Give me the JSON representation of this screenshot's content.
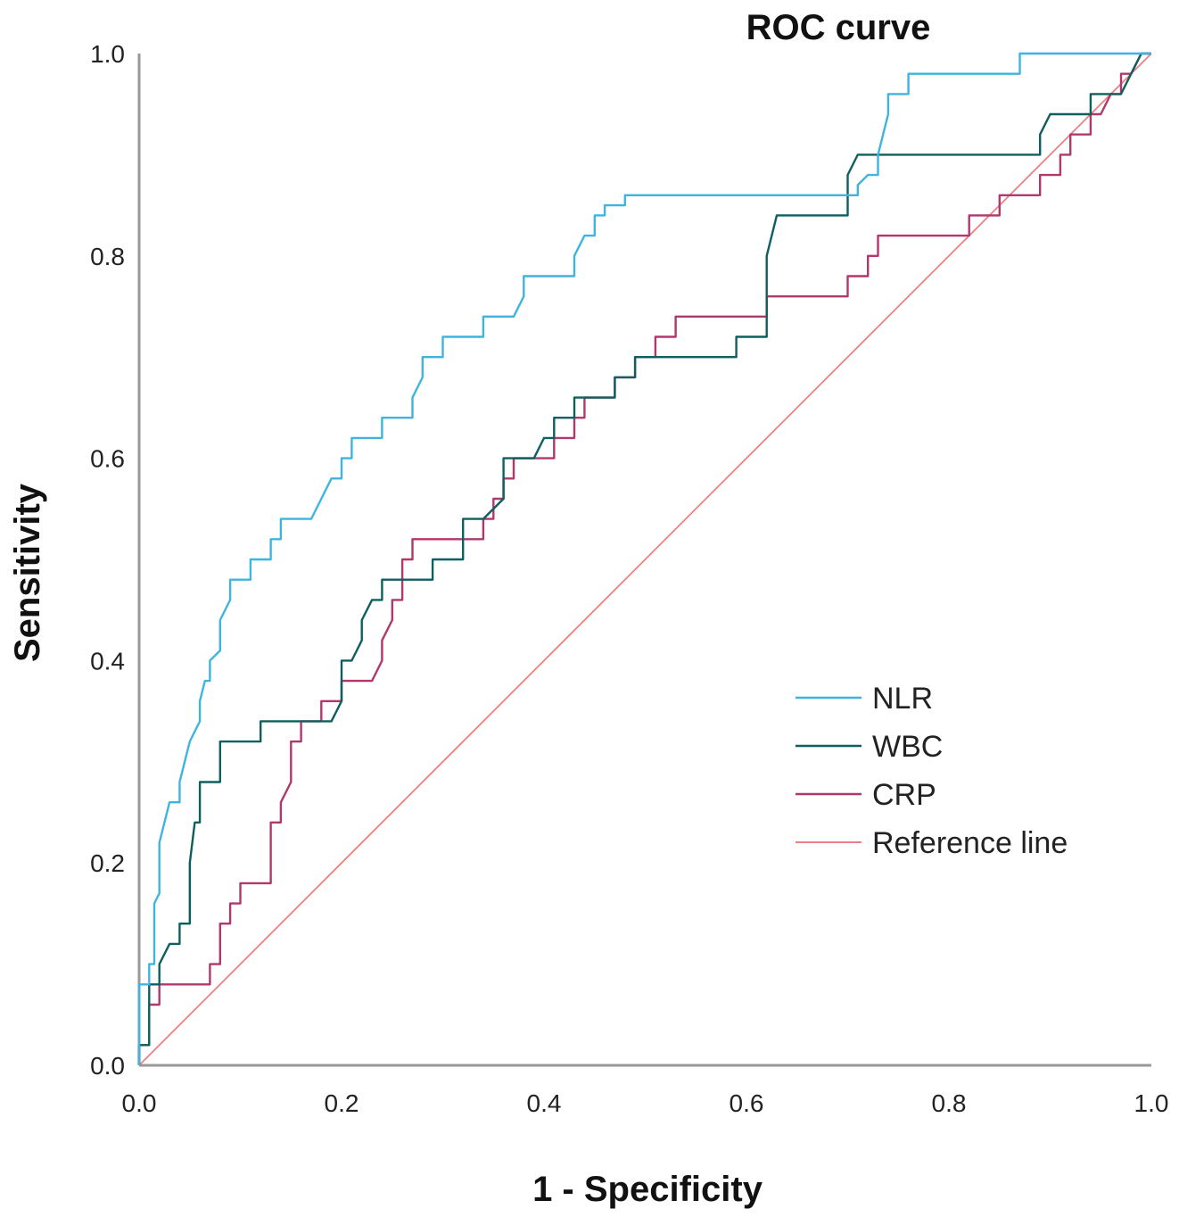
{
  "chart_data": {
    "type": "line",
    "title": "ROC curve",
    "xlabel": "1 - Specificity",
    "ylabel": "Sensitivity",
    "xlim": [
      0,
      1
    ],
    "ylim": [
      0,
      1
    ],
    "xticks": [
      "0.0",
      "0.2",
      "0.4",
      "0.6",
      "0.8",
      "1.0"
    ],
    "yticks": [
      "0.0",
      "0.2",
      "0.4",
      "0.6",
      "0.8",
      "1.0"
    ],
    "grid": false,
    "legend_position": "center-right",
    "series": [
      {
        "name": "NLR",
        "color": "#3FB4DE",
        "points": [
          [
            0,
            0
          ],
          [
            0,
            0.08
          ],
          [
            0.01,
            0.08
          ],
          [
            0.01,
            0.1
          ],
          [
            0.015,
            0.1
          ],
          [
            0.015,
            0.16
          ],
          [
            0.02,
            0.17
          ],
          [
            0.02,
            0.22
          ],
          [
            0.025,
            0.24
          ],
          [
            0.03,
            0.26
          ],
          [
            0.04,
            0.26
          ],
          [
            0.04,
            0.28
          ],
          [
            0.045,
            0.3
          ],
          [
            0.05,
            0.32
          ],
          [
            0.055,
            0.33
          ],
          [
            0.06,
            0.34
          ],
          [
            0.06,
            0.36
          ],
          [
            0.065,
            0.38
          ],
          [
            0.07,
            0.38
          ],
          [
            0.07,
            0.4
          ],
          [
            0.08,
            0.41
          ],
          [
            0.08,
            0.44
          ],
          [
            0.09,
            0.46
          ],
          [
            0.09,
            0.48
          ],
          [
            0.11,
            0.48
          ],
          [
            0.11,
            0.5
          ],
          [
            0.13,
            0.5
          ],
          [
            0.13,
            0.52
          ],
          [
            0.14,
            0.52
          ],
          [
            0.14,
            0.54
          ],
          [
            0.17,
            0.54
          ],
          [
            0.18,
            0.56
          ],
          [
            0.19,
            0.58
          ],
          [
            0.2,
            0.58
          ],
          [
            0.2,
            0.6
          ],
          [
            0.21,
            0.6
          ],
          [
            0.21,
            0.62
          ],
          [
            0.24,
            0.62
          ],
          [
            0.24,
            0.64
          ],
          [
            0.27,
            0.64
          ],
          [
            0.27,
            0.66
          ],
          [
            0.28,
            0.68
          ],
          [
            0.28,
            0.7
          ],
          [
            0.3,
            0.7
          ],
          [
            0.3,
            0.72
          ],
          [
            0.34,
            0.72
          ],
          [
            0.34,
            0.74
          ],
          [
            0.37,
            0.74
          ],
          [
            0.38,
            0.76
          ],
          [
            0.38,
            0.78
          ],
          [
            0.41,
            0.78
          ],
          [
            0.43,
            0.78
          ],
          [
            0.43,
            0.8
          ],
          [
            0.44,
            0.82
          ],
          [
            0.45,
            0.82
          ],
          [
            0.45,
            0.84
          ],
          [
            0.46,
            0.84
          ],
          [
            0.46,
            0.85
          ],
          [
            0.48,
            0.85
          ],
          [
            0.48,
            0.86
          ],
          [
            0.71,
            0.86
          ],
          [
            0.71,
            0.87
          ],
          [
            0.72,
            0.88
          ],
          [
            0.73,
            0.88
          ],
          [
            0.73,
            0.9
          ],
          [
            0.74,
            0.94
          ],
          [
            0.74,
            0.96
          ],
          [
            0.76,
            0.96
          ],
          [
            0.76,
            0.98
          ],
          [
            0.87,
            0.98
          ],
          [
            0.87,
            1
          ],
          [
            1,
            1
          ]
        ]
      },
      {
        "name": "WBC",
        "color": "#0E5F5F",
        "points": [
          [
            0,
            0
          ],
          [
            0,
            0.02
          ],
          [
            0.01,
            0.02
          ],
          [
            0.01,
            0.08
          ],
          [
            0.02,
            0.08
          ],
          [
            0.02,
            0.1
          ],
          [
            0.03,
            0.12
          ],
          [
            0.04,
            0.12
          ],
          [
            0.04,
            0.14
          ],
          [
            0.05,
            0.14
          ],
          [
            0.05,
            0.2
          ],
          [
            0.055,
            0.24
          ],
          [
            0.06,
            0.24
          ],
          [
            0.06,
            0.28
          ],
          [
            0.08,
            0.28
          ],
          [
            0.08,
            0.32
          ],
          [
            0.12,
            0.32
          ],
          [
            0.12,
            0.34
          ],
          [
            0.19,
            0.34
          ],
          [
            0.2,
            0.36
          ],
          [
            0.2,
            0.4
          ],
          [
            0.21,
            0.4
          ],
          [
            0.22,
            0.42
          ],
          [
            0.22,
            0.44
          ],
          [
            0.23,
            0.46
          ],
          [
            0.24,
            0.46
          ],
          [
            0.24,
            0.48
          ],
          [
            0.29,
            0.48
          ],
          [
            0.29,
            0.5
          ],
          [
            0.32,
            0.5
          ],
          [
            0.32,
            0.54
          ],
          [
            0.33,
            0.54
          ],
          [
            0.34,
            0.54
          ],
          [
            0.36,
            0.56
          ],
          [
            0.36,
            0.6
          ],
          [
            0.39,
            0.6
          ],
          [
            0.4,
            0.62
          ],
          [
            0.41,
            0.62
          ],
          [
            0.41,
            0.64
          ],
          [
            0.43,
            0.64
          ],
          [
            0.43,
            0.66
          ],
          [
            0.47,
            0.66
          ],
          [
            0.47,
            0.68
          ],
          [
            0.49,
            0.68
          ],
          [
            0.49,
            0.7
          ],
          [
            0.59,
            0.7
          ],
          [
            0.59,
            0.72
          ],
          [
            0.62,
            0.72
          ],
          [
            0.62,
            0.8
          ],
          [
            0.63,
            0.84
          ],
          [
            0.7,
            0.84
          ],
          [
            0.7,
            0.88
          ],
          [
            0.71,
            0.9
          ],
          [
            0.89,
            0.9
          ],
          [
            0.89,
            0.92
          ],
          [
            0.9,
            0.94
          ],
          [
            0.94,
            0.94
          ],
          [
            0.94,
            0.96
          ],
          [
            0.97,
            0.96
          ],
          [
            0.98,
            0.98
          ],
          [
            0.99,
            1
          ],
          [
            1,
            1
          ]
        ]
      },
      {
        "name": "CRP",
        "color": "#B0386C",
        "points": [
          [
            0,
            0
          ],
          [
            0,
            0.02
          ],
          [
            0.01,
            0.02
          ],
          [
            0.01,
            0.06
          ],
          [
            0.02,
            0.06
          ],
          [
            0.02,
            0.08
          ],
          [
            0.07,
            0.08
          ],
          [
            0.07,
            0.1
          ],
          [
            0.08,
            0.1
          ],
          [
            0.08,
            0.14
          ],
          [
            0.09,
            0.14
          ],
          [
            0.09,
            0.16
          ],
          [
            0.1,
            0.16
          ],
          [
            0.1,
            0.18
          ],
          [
            0.13,
            0.18
          ],
          [
            0.13,
            0.24
          ],
          [
            0.14,
            0.24
          ],
          [
            0.14,
            0.26
          ],
          [
            0.15,
            0.28
          ],
          [
            0.15,
            0.32
          ],
          [
            0.16,
            0.32
          ],
          [
            0.16,
            0.34
          ],
          [
            0.18,
            0.34
          ],
          [
            0.18,
            0.36
          ],
          [
            0.2,
            0.36
          ],
          [
            0.2,
            0.38
          ],
          [
            0.23,
            0.38
          ],
          [
            0.24,
            0.4
          ],
          [
            0.24,
            0.42
          ],
          [
            0.25,
            0.44
          ],
          [
            0.25,
            0.46
          ],
          [
            0.26,
            0.46
          ],
          [
            0.26,
            0.5
          ],
          [
            0.27,
            0.5
          ],
          [
            0.27,
            0.52
          ],
          [
            0.34,
            0.52
          ],
          [
            0.34,
            0.54
          ],
          [
            0.35,
            0.54
          ],
          [
            0.35,
            0.56
          ],
          [
            0.36,
            0.56
          ],
          [
            0.36,
            0.58
          ],
          [
            0.37,
            0.58
          ],
          [
            0.37,
            0.6
          ],
          [
            0.41,
            0.6
          ],
          [
            0.41,
            0.62
          ],
          [
            0.43,
            0.62
          ],
          [
            0.43,
            0.64
          ],
          [
            0.44,
            0.64
          ],
          [
            0.44,
            0.66
          ],
          [
            0.47,
            0.66
          ],
          [
            0.47,
            0.68
          ],
          [
            0.49,
            0.68
          ],
          [
            0.49,
            0.7
          ],
          [
            0.51,
            0.7
          ],
          [
            0.51,
            0.72
          ],
          [
            0.53,
            0.72
          ],
          [
            0.53,
            0.74
          ],
          [
            0.62,
            0.74
          ],
          [
            0.62,
            0.76
          ],
          [
            0.7,
            0.76
          ],
          [
            0.7,
            0.78
          ],
          [
            0.72,
            0.78
          ],
          [
            0.72,
            0.8
          ],
          [
            0.73,
            0.8
          ],
          [
            0.73,
            0.82
          ],
          [
            0.82,
            0.82
          ],
          [
            0.82,
            0.84
          ],
          [
            0.84,
            0.84
          ],
          [
            0.85,
            0.84
          ],
          [
            0.85,
            0.86
          ],
          [
            0.89,
            0.86
          ],
          [
            0.89,
            0.88
          ],
          [
            0.91,
            0.88
          ],
          [
            0.91,
            0.9
          ],
          [
            0.92,
            0.9
          ],
          [
            0.92,
            0.92
          ],
          [
            0.94,
            0.92
          ],
          [
            0.94,
            0.94
          ],
          [
            0.95,
            0.94
          ],
          [
            0.96,
            0.96
          ],
          [
            0.97,
            0.96
          ],
          [
            0.97,
            0.98
          ],
          [
            0.98,
            0.98
          ],
          [
            0.99,
            1
          ],
          [
            1,
            1
          ]
        ]
      },
      {
        "name": "Reference line",
        "color": "#F08080",
        "points": [
          [
            0,
            0
          ],
          [
            1,
            1
          ]
        ]
      }
    ]
  }
}
